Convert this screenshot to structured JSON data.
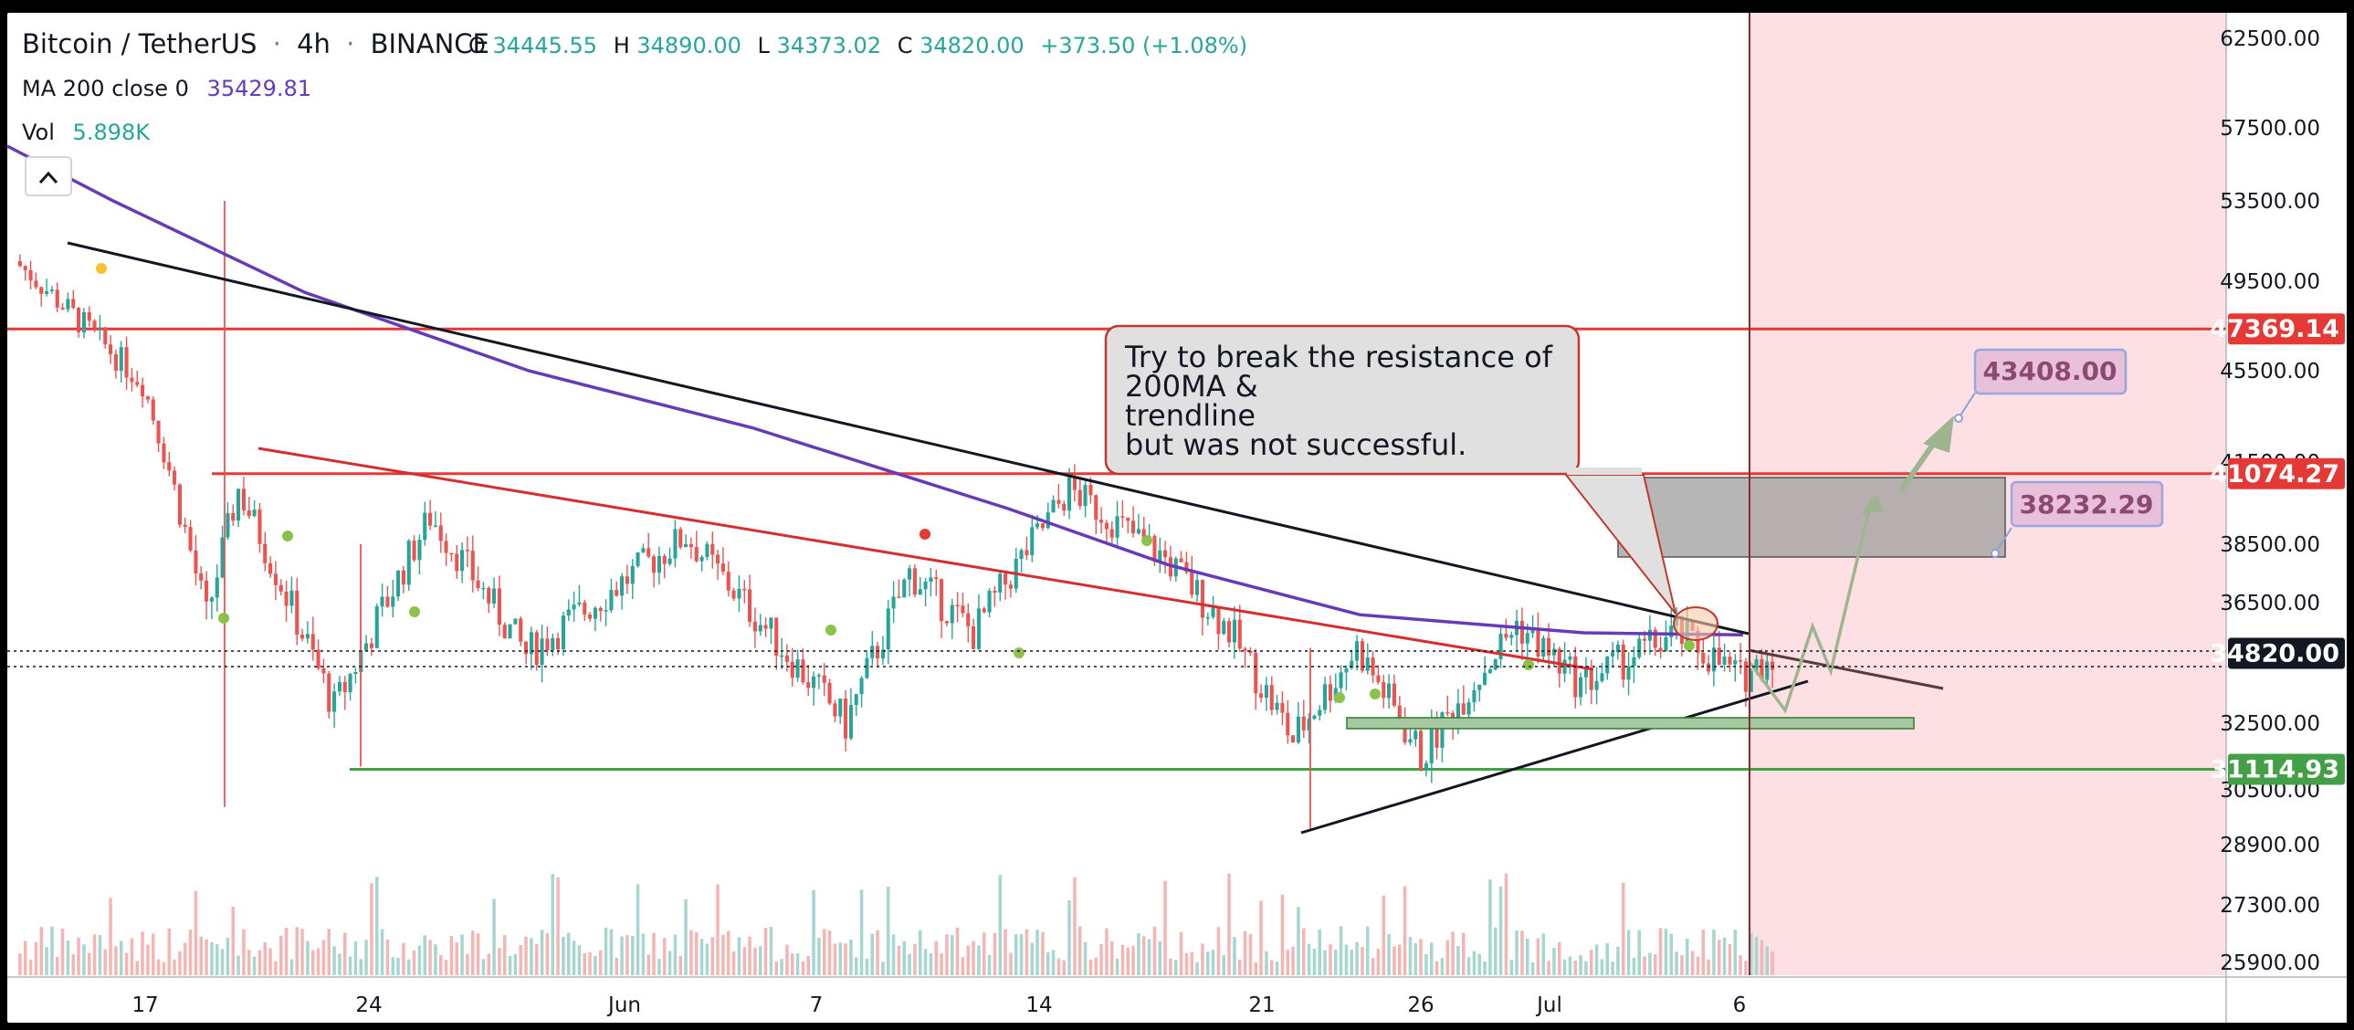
{
  "header": {
    "symbol": "Bitcoin / TetherUS",
    "interval": "4h",
    "exchange": "BINANCE",
    "sep": "·",
    "o_label": "O",
    "o_value": "34445.55",
    "h_label": "H",
    "h_value": "34890.00",
    "l_label": "L",
    "l_value": "34373.02",
    "c_label": "C",
    "c_value": "34820.00",
    "change": "+373.50 (+1.08%)",
    "ma_label": "MA 200 close 0",
    "ma_value": "35429.81",
    "vol_label": "Vol",
    "vol_value": "5.898K",
    "collapse_icon": "chevron-up-icon"
  },
  "colors": {
    "up": "#26a69a",
    "down": "#ef5350",
    "ma": "#673ab7",
    "resistance": "#e53935",
    "support": "#43a047",
    "trendline": "#131722",
    "future_zone": "#fde0e4",
    "current_price": "#131722"
  },
  "annotation": {
    "lines": [
      "Try to break the resistance of",
      "200MA &",
      "trendline",
      "but was not successful."
    ]
  },
  "targets": [
    {
      "label": "43408.00",
      "price": 43408
    },
    {
      "label": "38232.29",
      "price": 38232.29
    }
  ],
  "chart_data": {
    "type": "candlestick",
    "symbol": "BTCUSDT",
    "timeframe": "4h",
    "x_ticks": [
      "17",
      "24",
      "Jun",
      "7",
      "14",
      "21",
      "26",
      "Jul",
      "6"
    ],
    "y_ticks": [
      "62500.00",
      "57500.00",
      "53500.00",
      "49500.00",
      "45500.00",
      "41500.00",
      "38500.00",
      "36500.00",
      "32500.00",
      "30500.00",
      "28900.00",
      "27300.00",
      "25900.00"
    ],
    "ylim": [
      24600,
      63200
    ],
    "price_labels": [
      {
        "label": "47369.14",
        "price": 47369.14,
        "kind": "resistance"
      },
      {
        "label": "41074.27",
        "price": 41074.27,
        "kind": "resistance"
      },
      {
        "label": "34820.00",
        "price": 34820.0,
        "kind": "current"
      },
      {
        "label": "31114.93",
        "price": 31114.93,
        "kind": "support"
      }
    ],
    "key_points": [
      {
        "date": "2021-05-13",
        "close": 50500
      },
      {
        "date": "2021-05-17",
        "close": 45000
      },
      {
        "date": "2021-05-19",
        "close": 36000
      },
      {
        "date": "2021-05-20",
        "close": 40500
      },
      {
        "date": "2021-05-23",
        "close": 33000
      },
      {
        "date": "2021-05-26",
        "close": 39500
      },
      {
        "date": "2021-05-29",
        "close": 34800
      },
      {
        "date": "2021-06-03",
        "close": 38800
      },
      {
        "date": "2021-06-08",
        "close": 32500
      },
      {
        "date": "2021-06-10",
        "close": 37500
      },
      {
        "date": "2021-06-12",
        "close": 35500
      },
      {
        "date": "2021-06-15",
        "close": 40500
      },
      {
        "date": "2021-06-18",
        "close": 38000
      },
      {
        "date": "2021-06-20",
        "close": 35600
      },
      {
        "date": "2021-06-22",
        "close": 32000
      },
      {
        "date": "2021-06-24",
        "close": 35000
      },
      {
        "date": "2021-06-26",
        "close": 31500
      },
      {
        "date": "2021-06-29",
        "close": 35800
      },
      {
        "date": "2021-07-01",
        "close": 33800
      },
      {
        "date": "2021-07-04",
        "close": 35500
      },
      {
        "date": "2021-07-06",
        "close": 34000
      },
      {
        "date": "2021-07-07",
        "close": 34820
      }
    ],
    "ma200_points": [
      {
        "date": "2021-05-12",
        "value": 56500
      },
      {
        "date": "2021-05-16",
        "value": 53500
      },
      {
        "date": "2021-05-22",
        "value": 49000
      },
      {
        "date": "2021-05-29",
        "value": 45500
      },
      {
        "date": "2021-06-05",
        "value": 43000
      },
      {
        "date": "2021-06-13",
        "value": 39800
      },
      {
        "date": "2021-06-18",
        "value": 37800
      },
      {
        "date": "2021-06-24",
        "value": 36100
      },
      {
        "date": "2021-07-01",
        "value": 35500
      },
      {
        "date": "2021-07-06",
        "value": 35430
      }
    ]
  }
}
